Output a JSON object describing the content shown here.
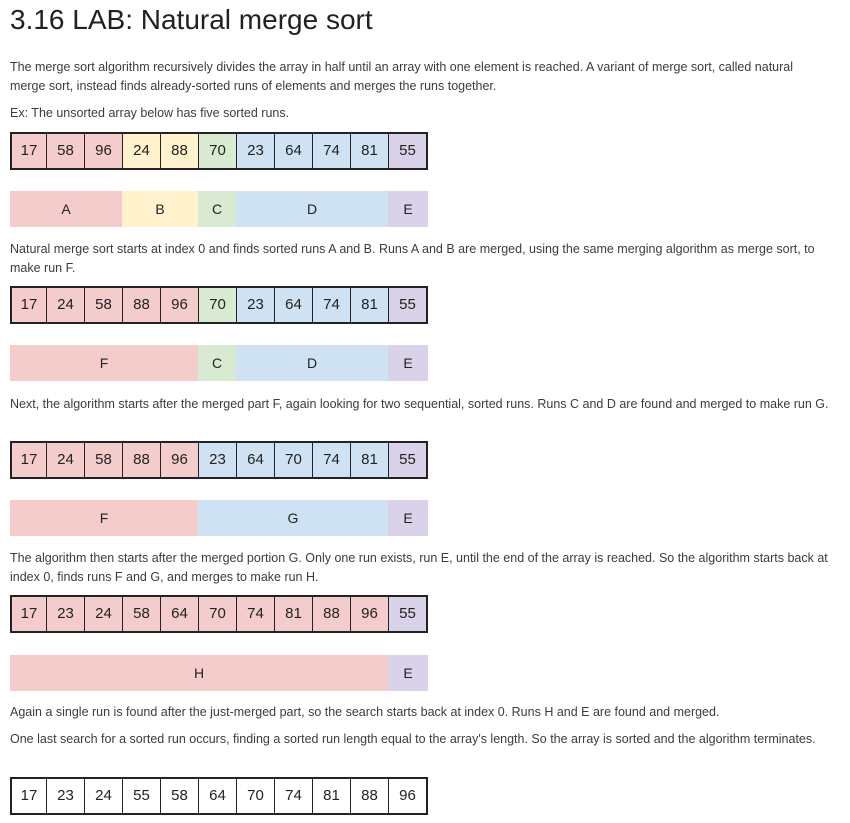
{
  "title": "3.16 LAB: Natural merge sort",
  "colors": {
    "A": "#f4cccc",
    "B": "#fff2cc",
    "C": "#d9ead3",
    "D": "#cfe2f3",
    "E": "#d9d2e9",
    "white": "#ffffff"
  },
  "paragraphs": {
    "p1": "The merge sort algorithm recursively divides the array in half until an array with one element is reached. A variant of merge sort, called natural merge sort, instead finds already-sorted runs of elements and merges the runs together.",
    "p2": "Ex: The unsorted array below has five sorted runs.",
    "p3": "Natural merge sort starts at index 0 and finds sorted runs A and B. Runs A and B are merged, using the same merging algorithm as merge sort, to make run F.",
    "p4": "Next, the algorithm starts after the merged part F, again looking for two sequential, sorted runs. Runs C and D are found and merged to make run G.",
    "p5": "The algorithm then starts after the merged portion G. Only one run exists, run E, until the end of the array is reached. So the algorithm starts back at index 0, finds runs F and G, and merges to make run H.",
    "p6": "Again a single run is found after the just-merged part, so the search starts back at index 0. Runs H and E are found and merged.",
    "p7": "One last search for a sorted run occurs, finding a sorted run length equal to the array's length. So the array is sorted and the algorithm terminates."
  },
  "arrays": {
    "a1": {
      "values": [
        "17",
        "58",
        "96",
        "24",
        "88",
        "70",
        "23",
        "64",
        "74",
        "81",
        "55"
      ],
      "colors": [
        "A",
        "A",
        "A",
        "B",
        "B",
        "C",
        "D",
        "D",
        "D",
        "D",
        "E"
      ]
    },
    "a2": {
      "values": [
        "17",
        "24",
        "58",
        "88",
        "96",
        "70",
        "23",
        "64",
        "74",
        "81",
        "55"
      ],
      "colors": [
        "A",
        "A",
        "A",
        "A",
        "A",
        "C",
        "D",
        "D",
        "D",
        "D",
        "E"
      ]
    },
    "a3": {
      "values": [
        "17",
        "24",
        "58",
        "88",
        "96",
        "23",
        "64",
        "70",
        "74",
        "81",
        "55"
      ],
      "colors": [
        "A",
        "A",
        "A",
        "A",
        "A",
        "D",
        "D",
        "D",
        "D",
        "D",
        "E"
      ]
    },
    "a4": {
      "values": [
        "17",
        "23",
        "24",
        "58",
        "64",
        "70",
        "74",
        "81",
        "88",
        "96",
        "55"
      ],
      "colors": [
        "A",
        "A",
        "A",
        "A",
        "A",
        "A",
        "A",
        "A",
        "A",
        "A",
        "E"
      ]
    },
    "a5": {
      "values": [
        "17",
        "23",
        "24",
        "55",
        "58",
        "64",
        "70",
        "74",
        "81",
        "88",
        "96"
      ],
      "colors": [
        "white",
        "white",
        "white",
        "white",
        "white",
        "white",
        "white",
        "white",
        "white",
        "white",
        "white"
      ]
    }
  },
  "runs": {
    "r1": [
      {
        "label": "A",
        "color": "A",
        "span": 3
      },
      {
        "label": "B",
        "color": "B",
        "span": 2
      },
      {
        "label": "C",
        "color": "C",
        "span": 1
      },
      {
        "label": "D",
        "color": "D",
        "span": 4
      },
      {
        "label": "E",
        "color": "E",
        "span": 1
      }
    ],
    "r2": [
      {
        "label": "F",
        "color": "A",
        "span": 5
      },
      {
        "label": "C",
        "color": "C",
        "span": 1
      },
      {
        "label": "D",
        "color": "D",
        "span": 4
      },
      {
        "label": "E",
        "color": "E",
        "span": 1
      }
    ],
    "r3": [
      {
        "label": "F",
        "color": "A",
        "span": 5
      },
      {
        "label": "G",
        "color": "D",
        "span": 5
      },
      {
        "label": "E",
        "color": "E",
        "span": 1
      }
    ],
    "r4": [
      {
        "label": "H",
        "color": "A",
        "span": 10
      },
      {
        "label": "E",
        "color": "E",
        "span": 1
      }
    ]
  }
}
